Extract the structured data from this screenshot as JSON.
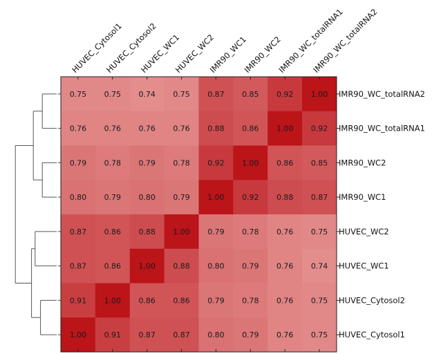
{
  "chart_data": {
    "type": "heatmap",
    "title": "",
    "subtitle": "",
    "xlabel": "",
    "ylabel": "",
    "x_categories": [
      "HUVEC_Cytosol1",
      "HUVEC_Cytosol2",
      "HUVEC_WC1",
      "HUVEC_WC2",
      "IMR90_WC1",
      "IMR90_WC2",
      "IMR90_WC_totalRNA1",
      "IMR90_WC_totalRNA2"
    ],
    "y_categories": [
      "IMR90_WC_totalRNA2",
      "IMR90_WC_totalRNA1",
      "IMR90_WC2",
      "IMR90_WC1",
      "HUVEC_WC2",
      "HUVEC_WC1",
      "HUVEC_Cytosol2",
      "HUVEC_Cytosol1"
    ],
    "values": [
      [
        0.75,
        0.75,
        0.74,
        0.75,
        0.87,
        0.85,
        0.92,
        1.0
      ],
      [
        0.76,
        0.76,
        0.76,
        0.76,
        0.88,
        0.86,
        1.0,
        0.92
      ],
      [
        0.79,
        0.78,
        0.79,
        0.78,
        0.92,
        1.0,
        0.86,
        0.85
      ],
      [
        0.8,
        0.79,
        0.8,
        0.79,
        1.0,
        0.92,
        0.88,
        0.87
      ],
      [
        0.87,
        0.86,
        0.88,
        1.0,
        0.79,
        0.78,
        0.76,
        0.75
      ],
      [
        0.87,
        0.86,
        1.0,
        0.88,
        0.8,
        0.79,
        0.76,
        0.74
      ],
      [
        0.91,
        1.0,
        0.86,
        0.86,
        0.79,
        0.78,
        0.76,
        0.75
      ],
      [
        1.0,
        0.91,
        0.87,
        0.87,
        0.8,
        0.79,
        0.76,
        0.75
      ]
    ],
    "value_format": "2 decimals",
    "color_scale": {
      "low_value": 0.74,
      "high_value": 1.0,
      "low_color": "#e38d8d",
      "high_color": "#bb1419"
    },
    "x_tick_position": "top",
    "y_tick_position": "right",
    "grid": false,
    "legend": "none",
    "dendrogram": {
      "side": "left",
      "clusters": [
        {
          "members": [
            "IMR90_WC_totalRNA2",
            "IMR90_WC_totalRNA1"
          ],
          "height": 0.08
        },
        {
          "members": [
            "IMR90_WC2",
            "IMR90_WC1"
          ],
          "height": 0.08
        },
        {
          "members": [
            "HUVEC_WC2",
            "HUVEC_WC1"
          ],
          "height": 0.12
        },
        {
          "members": [
            "HUVEC_Cytosol2",
            "HUVEC_Cytosol1"
          ],
          "height": 0.09
        },
        {
          "members": [
            "IMR90_WC_totalRNA2",
            "IMR90_WC_totalRNA1",
            "IMR90_WC2",
            "IMR90_WC1"
          ],
          "height": 0.13
        },
        {
          "members": [
            "HUVEC_WC2",
            "HUVEC_WC1",
            "HUVEC_Cytosol2",
            "HUVEC_Cytosol1"
          ],
          "height": 0.14
        },
        {
          "members": [
            "all"
          ],
          "height": 0.23
        }
      ],
      "line_color": "#555555"
    }
  }
}
